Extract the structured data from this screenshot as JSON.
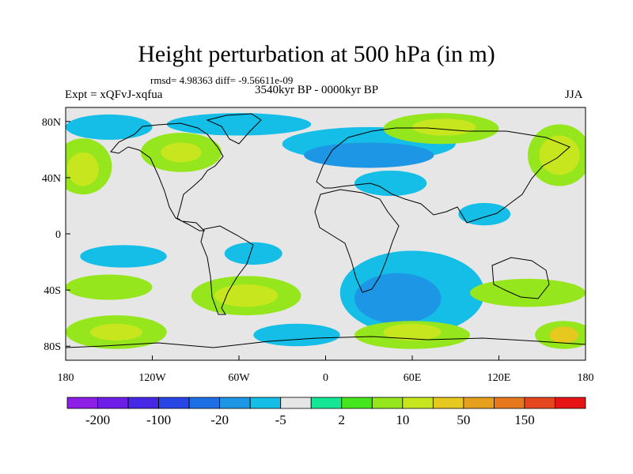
{
  "title": "Height perturbation at 500 hPa (in m)",
  "subtitle": "rmsd= 4.98363 diff= -9.56611e-09",
  "left_string": "Expt = xQFvJ-xqfua",
  "center_string": "3540kyr BP - 0000kyr BP",
  "right_string": "JJA",
  "map": {
    "projection": "cylindrical-equidistant",
    "lon_range": [
      -180,
      180
    ],
    "lat_range": [
      -90,
      90
    ],
    "x_ticks": [
      {
        "value": -180,
        "label": "180"
      },
      {
        "value": -120,
        "label": "120W"
      },
      {
        "value": -60,
        "label": "60W"
      },
      {
        "value": 0,
        "label": "0"
      },
      {
        "value": 60,
        "label": "60E"
      },
      {
        "value": 120,
        "label": "120E"
      },
      {
        "value": 180,
        "label": "180"
      }
    ],
    "y_ticks": [
      {
        "value": 80,
        "label": "80N"
      },
      {
        "value": 40,
        "label": "40N"
      },
      {
        "value": 0,
        "label": "0"
      },
      {
        "value": -40,
        "label": "40S"
      },
      {
        "value": -80,
        "label": "80S"
      }
    ],
    "background_color": "#e6e6e6"
  },
  "colorbar": {
    "colors": [
      "#8c1ee6",
      "#6e1ee6",
      "#4628e6",
      "#2846e6",
      "#1e6ee6",
      "#1e96e6",
      "#14bee6",
      "#e6e6e6",
      "#14e696",
      "#46e61e",
      "#96e61e",
      "#c8e61e",
      "#e6c81e",
      "#e6a01e",
      "#e6781e",
      "#e6461e",
      "#e61414"
    ],
    "labels": [
      {
        "index": 1,
        "text": "-200"
      },
      {
        "index": 3,
        "text": "-100"
      },
      {
        "index": 5,
        "text": "-20"
      },
      {
        "index": 7,
        "text": "-5"
      },
      {
        "index": 9,
        "text": "2"
      },
      {
        "index": 11,
        "text": "10"
      },
      {
        "index": 13,
        "text": "50"
      },
      {
        "index": 15,
        "text": "150"
      }
    ]
  },
  "chart_data": {
    "type": "heatmap",
    "title": "Height perturbation at 500 hPa (in m)",
    "units": "m",
    "x_domain": [
      -180,
      180
    ],
    "y_domain": [
      -90,
      90
    ],
    "regions": [
      {
        "name": "",
        "level": 6,
        "lon": -150,
        "lat": 76,
        "rx": 30,
        "ry": 9
      },
      {
        "name": "",
        "level": 6,
        "lon": -60,
        "lat": 78,
        "rx": 50,
        "ry": 8
      },
      {
        "name": "",
        "level": 6,
        "lon": 30,
        "lat": 64,
        "rx": 60,
        "ry": 12
      },
      {
        "name": "",
        "level": 5,
        "lon": 30,
        "lat": 56,
        "rx": 45,
        "ry": 9
      },
      {
        "name": "",
        "level": 6,
        "lon": 45,
        "lat": 36,
        "rx": 25,
        "ry": 9
      },
      {
        "name": "",
        "level": 6,
        "lon": 110,
        "lat": 14,
        "rx": 18,
        "ry": 8
      },
      {
        "name": "",
        "level": 10,
        "lon": 80,
        "lat": 75,
        "rx": 40,
        "ry": 11
      },
      {
        "name": "",
        "level": 11,
        "lon": 82,
        "lat": 76,
        "rx": 22,
        "ry": 6
      },
      {
        "name": "",
        "level": 10,
        "lon": 162,
        "lat": 56,
        "rx": 22,
        "ry": 22
      },
      {
        "name": "",
        "level": 11,
        "lon": 162,
        "lat": 56,
        "rx": 14,
        "ry": 14
      },
      {
        "name": "",
        "level": 10,
        "lon": -168,
        "lat": 48,
        "rx": 20,
        "ry": 20
      },
      {
        "name": "",
        "level": 11,
        "lon": -168,
        "lat": 46,
        "rx": 11,
        "ry": 12
      },
      {
        "name": "",
        "level": 10,
        "lon": -100,
        "lat": 58,
        "rx": 28,
        "ry": 14
      },
      {
        "name": "",
        "level": 11,
        "lon": -100,
        "lat": 58,
        "rx": 14,
        "ry": 7
      },
      {
        "name": "",
        "level": 6,
        "lon": -140,
        "lat": -16,
        "rx": 30,
        "ry": 8
      },
      {
        "name": "",
        "level": 6,
        "lon": -50,
        "lat": -14,
        "rx": 20,
        "ry": 8
      },
      {
        "name": "",
        "level": 6,
        "lon": 60,
        "lat": -42,
        "rx": 50,
        "ry": 30
      },
      {
        "name": "",
        "level": 5,
        "lon": 50,
        "lat": -46,
        "rx": 30,
        "ry": 18
      },
      {
        "name": "",
        "level": 6,
        "lon": -20,
        "lat": -72,
        "rx": 30,
        "ry": 8
      },
      {
        "name": "",
        "level": 10,
        "lon": 140,
        "lat": -42,
        "rx": 40,
        "ry": 10
      },
      {
        "name": "",
        "level": 10,
        "lon": -150,
        "lat": -38,
        "rx": 30,
        "ry": 9
      },
      {
        "name": "",
        "level": 10,
        "lon": -55,
        "lat": -44,
        "rx": 38,
        "ry": 14
      },
      {
        "name": "",
        "level": 11,
        "lon": -55,
        "lat": -44,
        "rx": 22,
        "ry": 8
      },
      {
        "name": "",
        "level": 10,
        "lon": 60,
        "lat": -72,
        "rx": 40,
        "ry": 10
      },
      {
        "name": "",
        "level": 11,
        "lon": 60,
        "lat": -70,
        "rx": 20,
        "ry": 6
      },
      {
        "name": "",
        "level": 10,
        "lon": 165,
        "lat": -72,
        "rx": 20,
        "ry": 10
      },
      {
        "name": "",
        "level": 12,
        "lon": 165,
        "lat": -72,
        "rx": 10,
        "ry": 6
      },
      {
        "name": "",
        "level": 10,
        "lon": -145,
        "lat": -70,
        "rx": 35,
        "ry": 12
      },
      {
        "name": "",
        "level": 11,
        "lon": -145,
        "lat": -70,
        "rx": 18,
        "ry": 6
      }
    ]
  }
}
